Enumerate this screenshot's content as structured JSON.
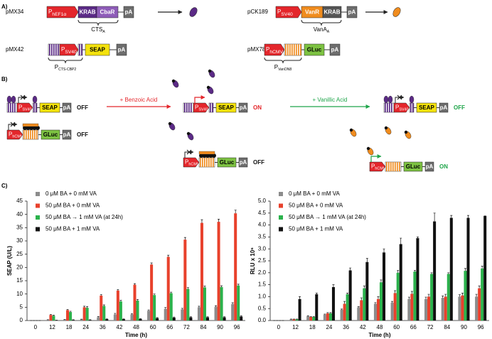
{
  "panel_a": {
    "label": "A)",
    "constructs": [
      {
        "name": "pMX34",
        "parts": [
          {
            "main": "P",
            "sub": "hEF1α"
          },
          "KRAB",
          "CbaR",
          "pA"
        ],
        "brace": {
          "main": "CTS",
          "sub": "A"
        }
      },
      {
        "name": "pMX42",
        "parts": [
          {
            "main": "P",
            "sub": "SV40"
          },
          "SEAP",
          "pA"
        ],
        "brace": {
          "main": "P",
          "sub": "CTS-CBP2"
        }
      },
      {
        "name": "pCK189",
        "parts": [
          {
            "main": "P",
            "sub": "SV40"
          },
          "VanR",
          "KRAB",
          "pA"
        ],
        "brace": {
          "main": "VanA",
          "sub": "A"
        }
      },
      {
        "name": "pMX78",
        "parts": [
          {
            "main": "P",
            "sub": "hCMV"
          },
          "GLuc",
          "pA"
        ],
        "brace": {
          "main": "P",
          "sub": "VanON8"
        }
      }
    ]
  },
  "panel_b": {
    "label": "B)",
    "transitions": [
      "+ Benzoic Acid",
      "+ Vanillic Acid"
    ],
    "states": [
      {
        "constructs": [
          {
            "parts": [
              {
                "main": "P",
                "sub": "SV40"
              },
              "SEAP",
              "pA"
            ],
            "status": "OFF"
          },
          {
            "parts": [
              {
                "main": "P",
                "sub": "hCMV"
              },
              "GLuc",
              "pA"
            ],
            "status": "OFF"
          }
        ]
      },
      {
        "constructs": [
          {
            "parts": [
              {
                "main": "P",
                "sub": "SV40"
              },
              "SEAP",
              "pA"
            ],
            "status": "ON"
          },
          {
            "parts": [
              {
                "main": "P",
                "sub": "hCMV"
              },
              "GLuc",
              "pA"
            ],
            "status": "OFF"
          }
        ]
      },
      {
        "constructs": [
          {
            "parts": [
              {
                "main": "P",
                "sub": "SV40"
              },
              "SEAP",
              "pA"
            ],
            "status": "OFF"
          },
          {
            "parts": [
              {
                "main": "P",
                "sub": "hCMV"
              },
              "GLuc",
              "pA"
            ],
            "status": "ON"
          }
        ]
      }
    ]
  },
  "panel_c": {
    "label": "C)"
  },
  "chart_data": [
    {
      "type": "bar",
      "x_label": "Time (h)",
      "y_label": "SEAP (U/L)",
      "legend": "upper left",
      "categories": [
        0,
        12,
        18,
        24,
        36,
        42,
        48,
        60,
        66,
        72,
        84,
        90,
        96
      ],
      "ylim": [
        0,
        45
      ],
      "yticks": [
        0,
        5,
        10,
        15,
        20,
        25,
        30,
        35,
        40,
        45
      ],
      "series": [
        {
          "name": "0 μM BA + 0 mM VA",
          "color": "#8c8c8c",
          "values": [
            0,
            0.2,
            0.3,
            0.4,
            1.2,
            2.3,
            2.3,
            3.7,
            4.4,
            4.2,
            5,
            5.2,
            6.2
          ],
          "errors": [
            0,
            0.1,
            0.1,
            0.1,
            0.3,
            0.4,
            0.3,
            0.3,
            0.5,
            0.4,
            0.4,
            0.4,
            0.5
          ]
        },
        {
          "name": "50 μM BA + 0 mM VA",
          "color": "#e8412c",
          "values": [
            0,
            2.1,
            3.9,
            5,
            9.4,
            11.3,
            13.5,
            21.1,
            24,
            30.5,
            36.8,
            37.2,
            40.4
          ],
          "errors": [
            0,
            0.2,
            0.3,
            0.4,
            0.4,
            0.4,
            0.4,
            0.6,
            0.6,
            0.8,
            1.2,
            1,
            1.2
          ]
        },
        {
          "name": "50 μM BA → 1 mM VA (at 24h)",
          "color": "#2bb24c",
          "values": [
            0,
            1.8,
            3.2,
            4.8,
            5.5,
            7.2,
            7.5,
            9.6,
            10.3,
            11.9,
            12.5,
            12.6,
            13.2
          ],
          "errors": [
            0,
            0.2,
            0.3,
            0.5,
            0.4,
            0.4,
            0.4,
            0.4,
            0.4,
            0.5,
            0.5,
            0.5,
            0.5
          ]
        },
        {
          "name": "50 μM BA + 1 mM VA",
          "color": "#111111",
          "values": [
            0,
            0.1,
            0.2,
            0.2,
            0.5,
            0.5,
            0.6,
            0.9,
            1.1,
            1.2,
            1.2,
            1.2,
            1.5
          ],
          "errors": [
            0,
            0.05,
            0.1,
            0.1,
            0.1,
            0.1,
            0.1,
            0.2,
            0.2,
            0.2,
            0.2,
            0.2,
            0.3
          ]
        }
      ]
    },
    {
      "type": "bar",
      "x_label": "Time (h)",
      "y_label": "RLU x 10⁶",
      "legend": "upper left",
      "categories": [
        0,
        12,
        18,
        24,
        36,
        42,
        48,
        60,
        66,
        72,
        84,
        90,
        96
      ],
      "ylim": [
        0,
        5
      ],
      "yticks": [
        {
          "value": 0,
          "label": "0.0"
        },
        0.5,
        {
          "value": 1,
          "label": "1.0"
        },
        1.5,
        {
          "value": 2,
          "label": "2.0"
        },
        2.5,
        {
          "value": 3,
          "label": "3.0"
        },
        3.5,
        {
          "value": 4,
          "label": "4.0"
        },
        4.5,
        {
          "value": 5,
          "label": "5.0"
        }
      ],
      "series": [
        {
          "name": "0 μM BA + 0 mM VA",
          "color": "#8c8c8c",
          "values": [
            0,
            0.05,
            0.18,
            0.25,
            0.45,
            0.55,
            0.7,
            0.75,
            0.9,
            0.9,
            0.95,
            1,
            1
          ],
          "errors": [
            0,
            0.01,
            0.02,
            0.02,
            0.03,
            0.03,
            0.05,
            0.05,
            0.08,
            0.08,
            0.08,
            0.08,
            0.1
          ]
        },
        {
          "name": "50 μM BA + 0 mM VA",
          "color": "#e8412c",
          "values": [
            0,
            0.05,
            0.15,
            0.3,
            0.7,
            0.85,
            0.9,
            1.15,
            1.12,
            1,
            1,
            1.05,
            1.35
          ],
          "errors": [
            0,
            0.01,
            0.02,
            0.03,
            0.1,
            0.1,
            0.1,
            0.1,
            0.1,
            0.1,
            0.1,
            0.1,
            0.1
          ]
        },
        {
          "name": "50 μM BA → 1 mM VA (at 24h)",
          "color": "#2bb24c",
          "values": [
            0,
            0.05,
            0.15,
            0.3,
            1.1,
            1.35,
            1.6,
            2,
            2.05,
            1.95,
            1.95,
            2.08,
            2.18
          ],
          "errors": [
            0,
            0.01,
            0.02,
            0.03,
            0.05,
            0.1,
            0.1,
            0.1,
            0.05,
            0.05,
            0.05,
            0.1,
            0.1
          ]
        },
        {
          "name": "50 μM BA + 1 mM VA",
          "color": "#111111",
          "values": [
            0,
            0.9,
            1.1,
            1.4,
            2.1,
            2.45,
            2.85,
            3.2,
            3.45,
            4.15,
            4.3,
            4.3,
            4.38
          ],
          "errors": [
            0,
            0.1,
            0.05,
            0.1,
            0.1,
            0.15,
            0.15,
            0.25,
            0.05,
            0.35,
            0.1,
            0.1,
            0
          ]
        }
      ]
    }
  ]
}
